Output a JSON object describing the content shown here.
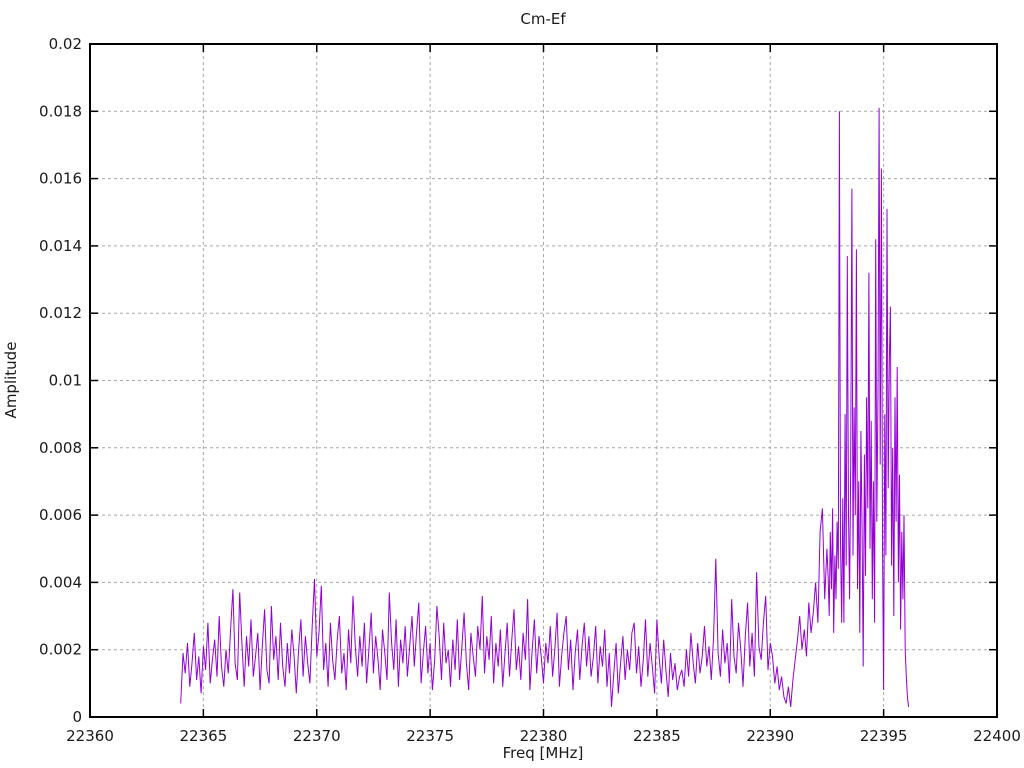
{
  "chart_data": {
    "type": "line",
    "title": "Cm-Ef",
    "xlabel": "Freq [MHz]",
    "ylabel": "Amplitude",
    "xlim": [
      22360,
      22400
    ],
    "ylim": [
      0,
      0.02
    ],
    "x_ticks": [
      22360,
      22365,
      22370,
      22375,
      22380,
      22385,
      22390,
      22395,
      22400
    ],
    "x_tick_labels": [
      "22360",
      "22365",
      "22370",
      "22375",
      "22380",
      "22385",
      "22390",
      "22395",
      "22400"
    ],
    "y_ticks": [
      0,
      0.002,
      0.004,
      0.006,
      0.008,
      0.01,
      0.012,
      0.014,
      0.016,
      0.018,
      0.02
    ],
    "y_tick_labels": [
      "0",
      "0.002",
      "0.004",
      "0.006",
      "0.008",
      "0.01",
      "0.012",
      "0.014",
      "0.016",
      "0.018",
      "0.02"
    ],
    "grid": "dashed",
    "legend": "none",
    "series": [
      {
        "name": "Cm-Ef",
        "color": "#9400d3",
        "y_scale": 0.0001,
        "segments": [
          {
            "x0": 22364.0,
            "dx": 0.1,
            "values": [
              4,
              19,
              13,
              22,
              9,
              16,
              25,
              11,
              18,
              7,
              21,
              14,
              28,
              10,
              17,
              23,
              12,
              30,
              15,
              9,
              20,
              13,
              26,
              38,
              16,
              11,
              37,
              22,
              9,
              24,
              15,
              29,
              12,
              18,
              25,
              8,
              21,
              32,
              14,
              10,
              33,
              17,
              24,
              11,
              28,
              15,
              9,
              22,
              13,
              26,
              18,
              7,
              20,
              29,
              12,
              24,
              16,
              10,
              27,
              41,
              18,
              25,
              39,
              14,
              22,
              9,
              28,
              17,
              11,
              23,
              30,
              13,
              19,
              8,
              26,
              16,
              36,
              21,
              12,
              24,
              15,
              28,
              10,
              20,
              31,
              13,
              24,
              17,
              8,
              26,
              19,
              11,
              37,
              22,
              14,
              29,
              9,
              23,
              16,
              27,
              12,
              21,
              30,
              15,
              25,
              34,
              10,
              19,
              27,
              13,
              22,
              8,
              17,
              33,
              24,
              11,
              28,
              16,
              20,
              9,
              23,
              14,
              29,
              11,
              21,
              31,
              16,
              8,
              25,
              18,
              12,
              27,
              20,
              36,
              13,
              24,
              17,
              30,
              10,
              22,
              15,
              26,
              9,
              19,
              28,
              12,
              23,
              32,
              14,
              21,
              11,
              25,
              17,
              35,
              8,
              20,
              29,
              13,
              24,
              18,
              10,
              22,
              16,
              27,
              12,
              20,
              31,
              9,
              18,
              25,
              30,
              14,
              23,
              8,
              19,
              26,
              11,
              21,
              28,
              15,
              24,
              12,
              18,
              27,
              10,
              21,
              15,
              26,
              9,
              19,
              3,
              13,
              22,
              7,
              16,
              24,
              11,
              20,
              14,
              25,
              28,
              13,
              21,
              9,
              17,
              29,
              12,
              22,
              15,
              7,
              29,
              18,
              10,
              23,
              14,
              6,
              19,
              11,
              16,
              8,
              12
            ]
          },
          {
            "x0": 22386.1,
            "dx": 0.1,
            "values": [
              14,
              9,
              20,
              12,
              25,
              16,
              10,
              22,
              13,
              18,
              27,
              15,
              21,
              11,
              24,
              47,
              19,
              12,
              26,
              16,
              22,
              10,
              35,
              18,
              13,
              28,
              20,
              9,
              24,
              34,
              15,
              25,
              12,
              43,
              21,
              17,
              28,
              36,
              14,
              22,
              18,
              10,
              15,
              8,
              12,
              6,
              4,
              9,
              3,
              11,
              17,
              23,
              30,
              20,
              26,
              18,
              34,
              25,
              31,
              40,
              28,
              55,
              62,
              35,
              50
            ]
          },
          {
            "x0": 22392.55,
            "dx": 0.05,
            "values": [
              42,
              30,
              55,
              38,
              62,
              25,
              48,
              35,
              58,
              44,
              180,
              52,
              28,
              65,
              28,
              90,
              45,
              137,
              60,
              35,
              75,
              157,
              48,
              92,
              60,
              139,
              38,
              70,
              25,
              85,
              55,
              15,
              78,
              42,
              95,
              62,
              132,
              50,
              88,
              35,
              70,
              28,
              142,
              58,
              96,
              181,
              75,
              163,
              52,
              8,
              90,
              48,
              151,
              68,
              105,
              122,
              45,
              80,
              30,
              95,
              58,
              104,
              40,
              72,
              26,
              55,
              35,
              60,
              20,
              12,
              6,
              3
            ]
          }
        ]
      }
    ]
  },
  "colors": {
    "line": "#9400d3",
    "grid": "#a8a8a8",
    "border": "#000000",
    "background": "#ffffff",
    "text": "#1a1a1a"
  }
}
